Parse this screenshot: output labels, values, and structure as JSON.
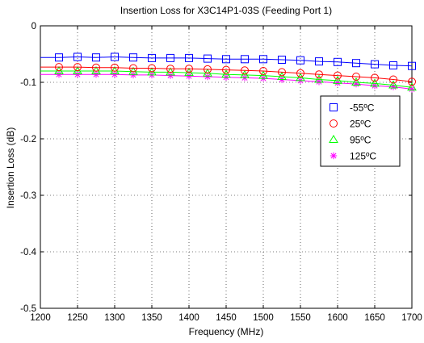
{
  "chart_data": {
    "type": "line",
    "title": "Insertion Loss for X3C14P1-03S (Feeding Port 1)",
    "xlabel": "Frequency (MHz)",
    "ylabel": "Insertion Loss (dB)",
    "xlim": [
      1200,
      1700
    ],
    "ylim": [
      -0.5,
      0
    ],
    "xticks": [
      1200,
      1250,
      1300,
      1350,
      1400,
      1450,
      1500,
      1550,
      1600,
      1650,
      1700
    ],
    "yticks": [
      0,
      -0.1,
      -0.2,
      -0.3,
      -0.4,
      -0.5
    ],
    "ytick_labels": [
      "0",
      "-0.1",
      "-0.2",
      "-0.3",
      "-0.4",
      "-0.5"
    ],
    "grid": true,
    "legend_position": "right",
    "x": [
      1225,
      1250,
      1275,
      1300,
      1325,
      1350,
      1375,
      1400,
      1425,
      1450,
      1475,
      1500,
      1525,
      1550,
      1575,
      1600,
      1625,
      1650,
      1675,
      1700
    ],
    "series": [
      {
        "name": "-55ºC",
        "color": "#0000ff",
        "marker": "square",
        "values": [
          -0.056,
          -0.055,
          -0.056,
          -0.055,
          -0.056,
          -0.057,
          -0.057,
          -0.057,
          -0.058,
          -0.059,
          -0.059,
          -0.059,
          -0.06,
          -0.061,
          -0.063,
          -0.064,
          -0.066,
          -0.068,
          -0.07,
          -0.071
        ]
      },
      {
        "name": "25ºC",
        "color": "#ff0000",
        "marker": "circle",
        "values": [
          -0.073,
          -0.073,
          -0.074,
          -0.074,
          -0.075,
          -0.075,
          -0.076,
          -0.076,
          -0.077,
          -0.078,
          -0.079,
          -0.08,
          -0.082,
          -0.084,
          -0.086,
          -0.088,
          -0.09,
          -0.092,
          -0.095,
          -0.099
        ]
      },
      {
        "name": "95ºC",
        "color": "#00ff00",
        "marker": "triangle",
        "values": [
          -0.08,
          -0.08,
          -0.08,
          -0.08,
          -0.081,
          -0.082,
          -0.082,
          -0.083,
          -0.084,
          -0.086,
          -0.087,
          -0.088,
          -0.09,
          -0.092,
          -0.095,
          -0.097,
          -0.1,
          -0.102,
          -0.105,
          -0.109
        ]
      },
      {
        "name": "125ºC",
        "color": "#ff00ff",
        "marker": "asterisk",
        "values": [
          -0.086,
          -0.086,
          -0.086,
          -0.086,
          -0.087,
          -0.087,
          -0.088,
          -0.089,
          -0.09,
          -0.091,
          -0.092,
          -0.093,
          -0.095,
          -0.097,
          -0.099,
          -0.101,
          -0.103,
          -0.106,
          -0.108,
          -0.112
        ]
      }
    ]
  }
}
